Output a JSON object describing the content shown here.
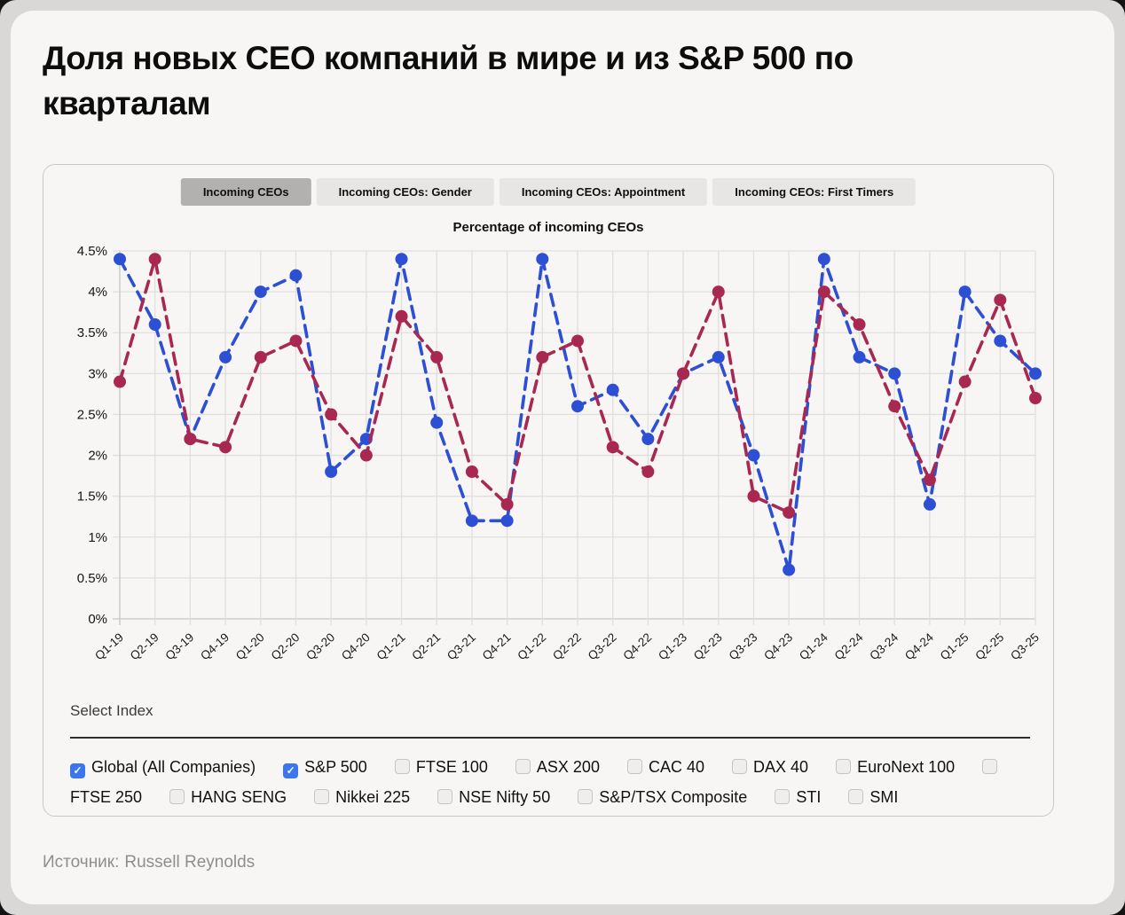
{
  "page": {
    "title": "Доля новых CEO компаний в мире и из S&P 500 по кварталам",
    "source_label": "Источник:",
    "source_value": "Russell Reynolds"
  },
  "tabs": [
    {
      "label": "Incoming CEOs",
      "active": true
    },
    {
      "label": "Incoming CEOs: Gender",
      "active": false
    },
    {
      "label": "Incoming CEOs: Appointment",
      "active": false
    },
    {
      "label": "Incoming CEOs: First Timers",
      "active": false
    }
  ],
  "select_index": {
    "label": "Select Index",
    "options": [
      {
        "label": "Global (All Companies)",
        "checked": true
      },
      {
        "label": "S&P 500",
        "checked": true
      },
      {
        "label": "FTSE 100",
        "checked": false
      },
      {
        "label": "ASX 200",
        "checked": false
      },
      {
        "label": "CAC 40",
        "checked": false
      },
      {
        "label": "DAX 40",
        "checked": false
      },
      {
        "label": "EuroNext 100",
        "checked": false
      },
      {
        "label": "FTSE 250",
        "checked": false
      },
      {
        "label": "HANG SENG",
        "checked": false
      },
      {
        "label": "Nikkei 225",
        "checked": false
      },
      {
        "label": "NSE Nifty 50",
        "checked": false
      },
      {
        "label": "S&P/TSX Composite",
        "checked": false
      },
      {
        "label": "STI",
        "checked": false
      },
      {
        "label": "SMI",
        "checked": false
      }
    ]
  },
  "colors": {
    "global_series": "#2d4fd3",
    "sp500_series": "#a82851",
    "checkbox_accent": "#3b76f0",
    "grid": "#e0dfdd",
    "axis": "#c6c5c3"
  },
  "chart_data": {
    "type": "line",
    "title": "Percentage of incoming CEOs",
    "line_style": "dashed",
    "markers": true,
    "grid": true,
    "ylim": [
      0,
      4.5
    ],
    "ytick_step": 0.5,
    "ytick_suffix": "%",
    "categories": [
      "Q1-19",
      "Q2-19",
      "Q3-19",
      "Q4-19",
      "Q1-20",
      "Q2-20",
      "Q3-20",
      "Q4-20",
      "Q1-21",
      "Q2-21",
      "Q3-21",
      "Q4-21",
      "Q1-22",
      "Q2-22",
      "Q3-22",
      "Q4-22",
      "Q1-23",
      "Q2-23",
      "Q3-23",
      "Q4-23",
      "Q1-24",
      "Q2-24",
      "Q3-24",
      "Q4-24",
      "Q1-25",
      "Q2-25",
      "Q3-25"
    ],
    "series": [
      {
        "name": "Global (All Companies)",
        "color": "#2d4fd3",
        "values": [
          4.4,
          3.6,
          2.2,
          3.2,
          4.0,
          4.2,
          1.8,
          2.2,
          4.4,
          2.4,
          1.2,
          1.2,
          4.4,
          2.6,
          2.8,
          2.2,
          3.0,
          3.2,
          2.0,
          0.6,
          4.4,
          3.2,
          3.0,
          1.4,
          4.0,
          3.4,
          3.0
        ]
      },
      {
        "name": "S&P 500",
        "color": "#a82851",
        "values": [
          2.9,
          4.4,
          2.2,
          2.1,
          3.2,
          3.4,
          2.5,
          2.0,
          3.7,
          3.2,
          1.8,
          1.4,
          3.2,
          3.4,
          2.1,
          1.8,
          3.0,
          4.0,
          1.5,
          1.3,
          4.0,
          3.6,
          2.6,
          1.7,
          2.9,
          3.9,
          2.7
        ]
      }
    ]
  }
}
